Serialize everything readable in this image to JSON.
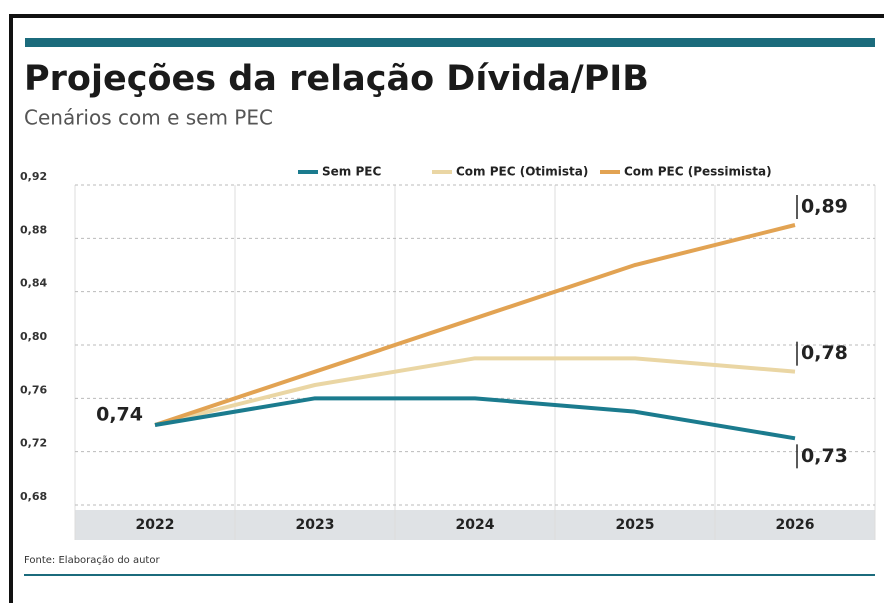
{
  "chart_data": {
    "type": "line",
    "title": "Projeções da relação Dívida/PIB",
    "subtitle": "Cenários com e sem PEC",
    "source": "Fonte: Elaboração do autor",
    "categories": [
      "2022",
      "2023",
      "2024",
      "2025",
      "2026"
    ],
    "series": [
      {
        "name": "Sem PEC",
        "color": "#1b7b8e",
        "values": [
          0.74,
          0.76,
          0.76,
          0.75,
          0.73
        ],
        "value_labels": [
          "0,74",
          null,
          null,
          null,
          "0,73"
        ]
      },
      {
        "name": "Com PEC (Otimista)",
        "color": "#ead6a4",
        "values": [
          0.74,
          0.77,
          0.79,
          0.79,
          0.78
        ],
        "value_labels": [
          null,
          null,
          null,
          null,
          "0,78"
        ]
      },
      {
        "name": "Com PEC (Pessimista)",
        "color": "#e2a353",
        "values": [
          0.74,
          0.78,
          0.82,
          0.86,
          0.89
        ],
        "value_labels": [
          null,
          null,
          null,
          null,
          "0,89"
        ]
      }
    ],
    "ylim": [
      0.68,
      0.92
    ],
    "yticks": [
      {
        "value": 0.68,
        "label": "0,68"
      },
      {
        "value": 0.72,
        "label": "0,72"
      },
      {
        "value": 0.76,
        "label": "0,76"
      },
      {
        "value": 0.8,
        "label": "0,80"
      },
      {
        "value": 0.84,
        "label": "0,84"
      },
      {
        "value": 0.88,
        "label": "0,88"
      },
      {
        "value": 0.92,
        "label": "0,92"
      }
    ],
    "grid": true
  }
}
